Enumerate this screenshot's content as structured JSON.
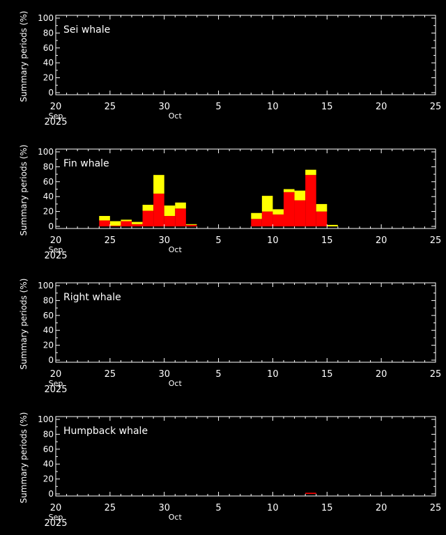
{
  "x_tick_labels": [
    "20",
    "25",
    "30",
    "5",
    "10",
    "15",
    "20",
    "25"
  ],
  "month_labels": [
    "Sep",
    "Oct"
  ],
  "year_label": "2025",
  "y_tick_labels": [
    "0",
    "20",
    "40",
    "60",
    "80",
    "100"
  ],
  "colors": {
    "red": "#ff0000",
    "yellow": "#ffff00",
    "axis": "#ffffff",
    "background": "#000000"
  },
  "chart_data": [
    {
      "type": "bar",
      "stacked": true,
      "title": "Sei whale",
      "ylabel": "Summary periods (%)",
      "ylim": [
        0,
        100
      ],
      "xlim": [
        "2025-09-20",
        "2025-10-25"
      ],
      "x": [],
      "series": [
        {
          "values": [],
          "color": "#ff0000"
        },
        {
          "values": [],
          "color": "#ffff00"
        }
      ]
    },
    {
      "type": "bar",
      "stacked": true,
      "title": "Fin whale",
      "ylabel": "Summary periods (%)",
      "ylim": [
        0,
        100
      ],
      "xlim": [
        "2025-09-20",
        "2025-10-25"
      ],
      "x": [
        "2025-09-24",
        "2025-09-25",
        "2025-09-26",
        "2025-09-27",
        "2025-09-28",
        "2025-09-29",
        "2025-09-30",
        "2025-10-01",
        "2025-10-02",
        "2025-10-08",
        "2025-10-09",
        "2025-10-10",
        "2025-10-11",
        "2025-10-12",
        "2025-10-13",
        "2025-10-14",
        "2025-10-15"
      ],
      "series": [
        {
          "values": [
            8,
            1,
            7,
            3,
            21,
            44,
            14,
            24,
            2,
            10,
            20,
            16,
            46,
            35,
            69,
            20,
            0
          ],
          "color": "#ff0000"
        },
        {
          "values": [
            6,
            6,
            2,
            3,
            8,
            25,
            14,
            8,
            1,
            8,
            21,
            7,
            4,
            13,
            7,
            10,
            2
          ],
          "color": "#ffff00"
        }
      ]
    },
    {
      "type": "bar",
      "stacked": true,
      "title": "Right whale",
      "ylabel": "Summary periods (%)",
      "ylim": [
        0,
        100
      ],
      "xlim": [
        "2025-09-20",
        "2025-10-25"
      ],
      "x": [],
      "series": [
        {
          "values": [],
          "color": "#ff0000"
        },
        {
          "values": [],
          "color": "#ffff00"
        }
      ]
    },
    {
      "type": "bar",
      "stacked": true,
      "title": "Humpback whale",
      "ylabel": "Summary periods (%)",
      "ylim": [
        0,
        100
      ],
      "xlim": [
        "2025-09-20",
        "2025-10-25"
      ],
      "x": [
        "2025-10-13"
      ],
      "series": [
        {
          "values": [
            1.5
          ],
          "color": "#ff0000"
        },
        {
          "values": [
            0
          ],
          "color": "#ffff00"
        }
      ]
    }
  ]
}
